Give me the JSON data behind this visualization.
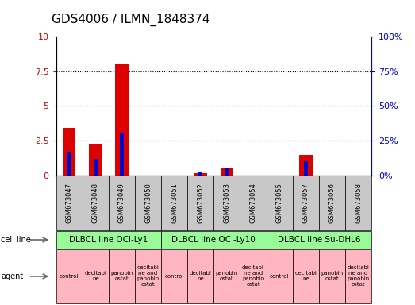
{
  "title": "GDS4006 / ILMN_1848374",
  "samples": [
    "GSM673047",
    "GSM673048",
    "GSM673049",
    "GSM673050",
    "GSM673051",
    "GSM673052",
    "GSM673053",
    "GSM673054",
    "GSM673055",
    "GSM673057",
    "GSM673056",
    "GSM673058"
  ],
  "count_values": [
    3.4,
    2.3,
    8.0,
    0.0,
    0.0,
    0.15,
    0.5,
    0.0,
    0.0,
    1.5,
    0.0,
    0.0
  ],
  "percentile_values": [
    17,
    12,
    30,
    0,
    0,
    2,
    5,
    0,
    0,
    10,
    0,
    0
  ],
  "ylim_left": [
    0,
    10
  ],
  "ylim_right": [
    0,
    100
  ],
  "yticks_left": [
    0,
    2.5,
    5.0,
    7.5,
    10
  ],
  "yticks_right": [
    0,
    25,
    50,
    75,
    100
  ],
  "ytick_labels_left": [
    "0",
    "2.5",
    "5",
    "7.5",
    "10"
  ],
  "ytick_labels_right": [
    "0%",
    "25%",
    "50%",
    "75%",
    "100%"
  ],
  "cell_lines": [
    {
      "label": "DLBCL line OCI-Ly1",
      "start": 0,
      "end": 3,
      "color": "#98FB98"
    },
    {
      "label": "DLBCL line OCI-Ly10",
      "start": 4,
      "end": 7,
      "color": "#98FB98"
    },
    {
      "label": "DLBCL line Su-DHL6",
      "start": 8,
      "end": 11,
      "color": "#98FB98"
    }
  ],
  "agents": [
    {
      "label": "control",
      "idx": 0
    },
    {
      "label": "decitabi\nne",
      "idx": 1
    },
    {
      "label": "panobin\nostat",
      "idx": 2
    },
    {
      "label": "decitabi\nne and\npanobin\nostat",
      "idx": 3
    },
    {
      "label": "control",
      "idx": 4
    },
    {
      "label": "decitabi\nne",
      "idx": 5
    },
    {
      "label": "panobin\nostat",
      "idx": 6
    },
    {
      "label": "decitabi\nne and\npanobin\nostat",
      "idx": 7
    },
    {
      "label": "control",
      "idx": 8
    },
    {
      "label": "decitabi\nne",
      "idx": 9
    },
    {
      "label": "panobin\nostat",
      "idx": 10
    },
    {
      "label": "decitabi\nne and\npanobin\nostat",
      "idx": 11
    }
  ],
  "agent_color": "#FFB6C1",
  "bar_color_red": "#DD0000",
  "bar_color_blue": "#0000CC",
  "bar_width": 0.5,
  "bg_color": "#FFFFFF",
  "sample_bg_color": "#C8C8C8",
  "legend_count_color": "#DD0000",
  "legend_pct_color": "#0000CC",
  "title_fontsize": 11,
  "left_label_color": "#CC0000",
  "right_label_color": "#0000CC"
}
